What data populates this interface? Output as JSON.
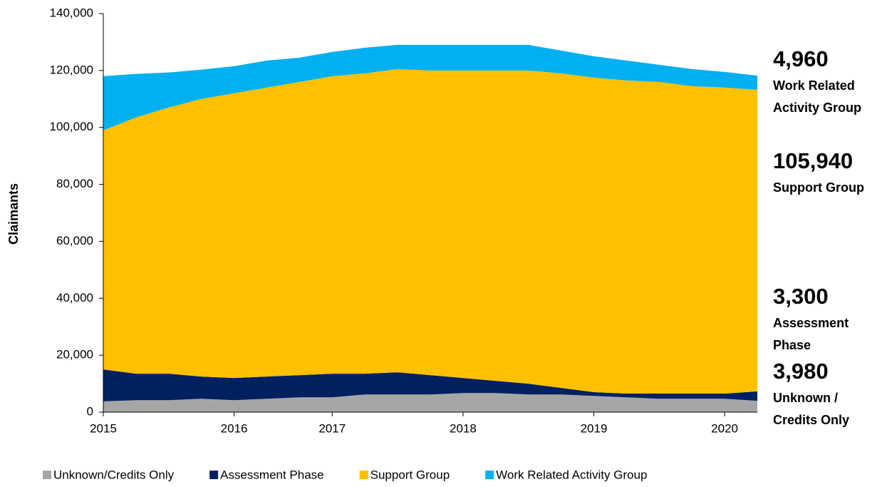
{
  "chart_data": {
    "type": "stacked_area",
    "y_label": "Claimants",
    "categories": [
      "2015",
      null,
      null,
      null,
      "2016",
      null,
      null,
      "2017",
      null,
      null,
      null,
      "2018",
      null,
      null,
      null,
      "2019",
      null,
      null,
      null,
      "2020",
      null
    ],
    "series": [
      {
        "name": "Unknown/Credits Only",
        "color": "#a6a6a6",
        "values": [
          3800,
          4200,
          4200,
          4700,
          4200,
          4700,
          5200,
          5200,
          6200,
          6200,
          6200,
          6700,
          6700,
          6200,
          6200,
          5700,
          5200,
          4700,
          4700,
          4700,
          3980
        ]
      },
      {
        "name": "Assessment Phase",
        "color": "#002060",
        "values": [
          11200,
          9300,
          9300,
          7800,
          7800,
          7800,
          7800,
          8300,
          7300,
          7800,
          6800,
          5300,
          4300,
          3800,
          2300,
          1300,
          1300,
          1800,
          1800,
          1800,
          3300
        ]
      },
      {
        "name": "Support Group",
        "color": "#ffc000",
        "values": [
          84000,
          90000,
          93500,
          97500,
          100000,
          101500,
          103000,
          104500,
          105500,
          106500,
          107000,
          108000,
          109000,
          110000,
          110500,
          110500,
          110000,
          109500,
          108000,
          107500,
          105940
        ]
      },
      {
        "name": "Work Related Activity Group",
        "color": "#00b0f0",
        "values": [
          19000,
          15300,
          12300,
          10300,
          9500,
          9500,
          8500,
          8500,
          9000,
          8500,
          9000,
          9000,
          9000,
          9000,
          8000,
          7500,
          7000,
          6000,
          6000,
          5500,
          4960
        ]
      }
    ],
    "ylim": [
      0,
      140000
    ],
    "yticks": [
      0,
      {
        "value": 20000,
        "label": "20,000"
      },
      {
        "value": 40000,
        "label": "40,000"
      },
      {
        "value": 60000,
        "label": "60,000"
      },
      {
        "value": 80000,
        "label": "80,000"
      },
      {
        "value": 100000,
        "label": "100,000"
      },
      {
        "value": 120000,
        "label": "120,000"
      },
      {
        "value": 140000,
        "label": "140,000"
      }
    ],
    "grid": false,
    "legend": "bottom",
    "annotations": [
      {
        "value": "4,960",
        "lines": [
          "Work Related",
          "Activity Group"
        ],
        "color": "#00b0f0"
      },
      {
        "value": "105,940",
        "lines": [
          "Support Group"
        ],
        "color": "#ffc000"
      },
      {
        "value": "3,300",
        "lines": [
          "Assessment",
          "Phase"
        ],
        "color": "#002060"
      },
      {
        "value": "3,980",
        "lines": [
          "Unknown /",
          "Credits Only"
        ],
        "color": "#bfbfbf"
      }
    ]
  }
}
